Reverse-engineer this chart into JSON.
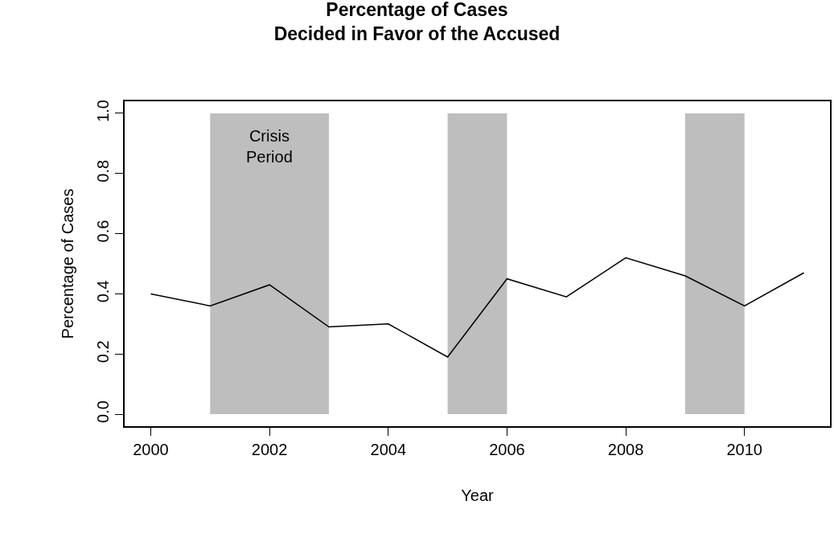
{
  "chart_data": {
    "type": "line",
    "title": "Percentage of Cases\nDecided in Favor of the Accused",
    "xlabel": "Year",
    "ylabel": "Percentage of Cases",
    "x": [
      2000,
      2001,
      2002,
      2003,
      2004,
      2005,
      2006,
      2007,
      2008,
      2009,
      2010,
      2011
    ],
    "series": [
      {
        "color": "#000000",
        "values": [
          0.4,
          0.36,
          0.43,
          0.29,
          0.3,
          0.19,
          0.45,
          0.39,
          0.52,
          0.46,
          0.36,
          0.47
        ]
      }
    ],
    "xlim": [
      1999.56,
      2011.44
    ],
    "xticks": [
      2000,
      2002,
      2004,
      2006,
      2008,
      2010
    ],
    "ylim": [
      -0.04,
      1.04
    ],
    "yticks": [
      {
        "value": 0,
        "label": "0.0"
      },
      0.2,
      0.4,
      0.6,
      0.8,
      {
        "value": 1,
        "label": "1.0"
      }
    ],
    "bands": [
      {
        "axis": "x",
        "from": 2001,
        "to": 2003,
        "label": "Crisis\nPeriod",
        "color": "#bebebe"
      },
      {
        "axis": "x",
        "from": 2005,
        "to": 2006,
        "color": "#bebebe"
      },
      {
        "axis": "x",
        "from": 2009,
        "to": 2010,
        "color": "#bebebe"
      }
    ],
    "grid": false,
    "marker": "none",
    "line_style": "solid"
  }
}
